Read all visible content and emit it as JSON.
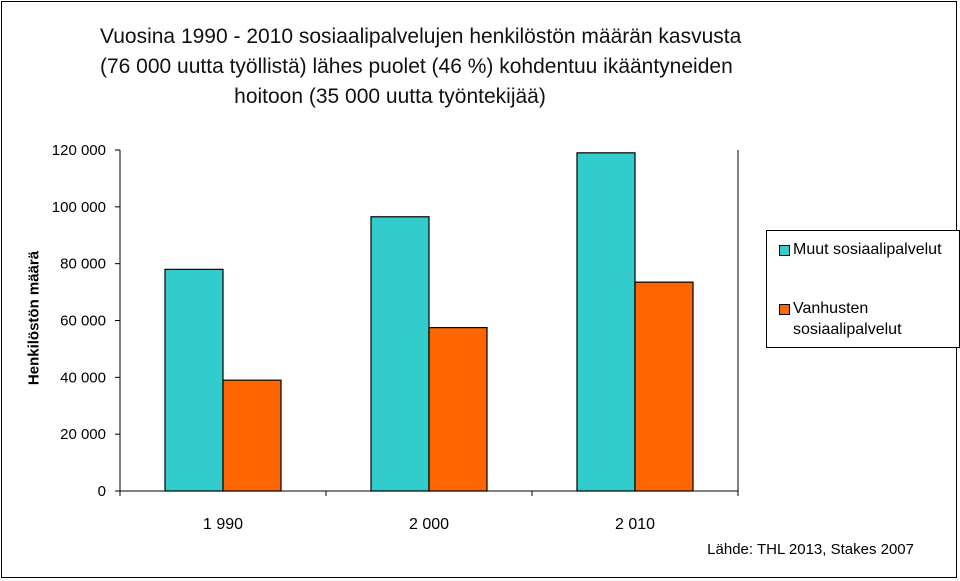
{
  "title_lines": [
    "Vuosina 1990 - 2010 sosiaalipalvelujen henkilöstön määrän kasvusta",
    "(76 000 uutta työllistä) lähes puolet (46 %) kohdentuu ikääntyneiden",
    "hoitoon (35 000 uutta työntekijää)"
  ],
  "source": "Lähde: THL 2013, Stakes 2007",
  "chart_data": {
    "type": "bar",
    "title": "Vuosina 1990 - 2010 sosiaalipalvelujen henkilöstön määrän kasvusta (76 000 uutta työllistä) lähes puolet (46 %) kohdentuu ikääntyneiden hoitoon (35 000 uutta työntekijää)",
    "xlabel": "",
    "ylabel": "Henkilöstön määrä",
    "categories": [
      "1 990",
      "2 000",
      "2 010"
    ],
    "series": [
      {
        "name": "Muut sosiaalipalvelut",
        "values": [
          78000,
          96500,
          119000
        ],
        "color": "#33CCCC"
      },
      {
        "name": "Vanhusten sosiaalipalvelut",
        "values": [
          39000,
          57500,
          73500
        ],
        "color": "#FF6600"
      }
    ],
    "ylim": [
      0,
      120000
    ],
    "yticks": [
      0,
      20000,
      40000,
      60000,
      80000,
      100000,
      120000
    ],
    "ytick_labels": [
      "0",
      "20 000",
      "40 000",
      "60 000",
      "80 000",
      "100 000",
      "120 000"
    ],
    "grid": false,
    "legend_position": "right"
  }
}
